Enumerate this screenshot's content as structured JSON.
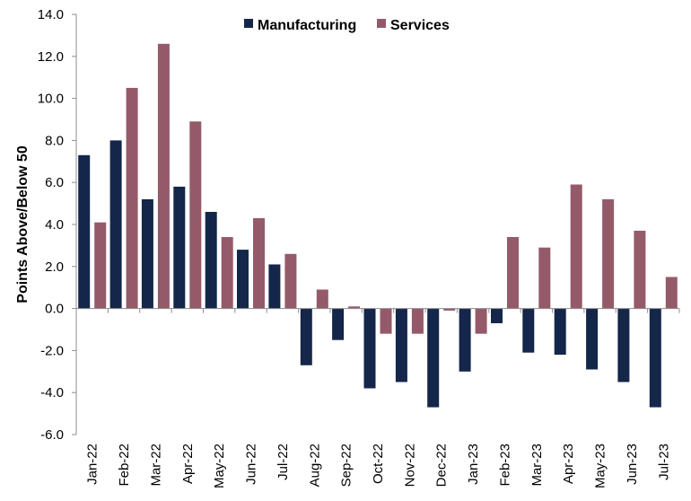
{
  "chart_data": {
    "type": "bar",
    "title": "",
    "xlabel": "",
    "ylabel": "Points Above/Below 50",
    "ylim": [
      -6,
      14
    ],
    "ytick_step": 2,
    "ytick_labels": [
      "-6.0",
      "-4.0",
      "-2.0",
      "0.0",
      "2.0",
      "4.0",
      "6.0",
      "8.0",
      "10.0",
      "12.0",
      "14.0"
    ],
    "grid": false,
    "legend_position": "top-center",
    "categories": [
      "Jan-22",
      "Feb-22",
      "Mar-22",
      "Apr-22",
      "May-22",
      "Jun-22",
      "Jul-22",
      "Aug-22",
      "Sep-22",
      "Oct-22",
      "Nov-22",
      "Dec-22",
      "Jan-23",
      "Feb-23",
      "Mar-23",
      "Apr-23",
      "May-23",
      "Jun-23",
      "Jul-23"
    ],
    "series": [
      {
        "name": "Manufacturing",
        "color": "#14264a",
        "values": [
          7.3,
          8.0,
          5.2,
          5.8,
          4.6,
          2.8,
          2.1,
          -2.7,
          -1.5,
          -3.8,
          -3.5,
          -4.7,
          -3.0,
          -0.7,
          -2.1,
          -2.2,
          -2.9,
          -3.5,
          -4.7
        ]
      },
      {
        "name": "Services",
        "color": "#955a6a",
        "values": [
          4.1,
          10.5,
          12.6,
          8.9,
          3.4,
          4.3,
          2.6,
          0.9,
          0.1,
          -1.2,
          -1.2,
          -0.1,
          -1.2,
          3.4,
          2.9,
          5.9,
          5.2,
          3.7,
          1.5
        ]
      }
    ]
  }
}
